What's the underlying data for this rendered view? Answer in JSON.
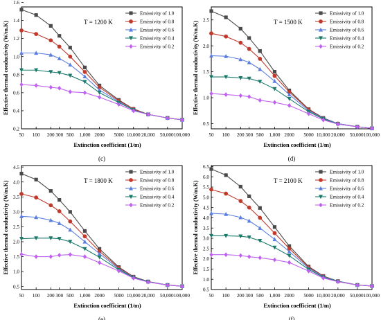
{
  "figure": {
    "legend_title_prefix": "Emissivity of",
    "series_colors": [
      "#4a4a4a",
      "#c0392b",
      "#5b7fe0",
      "#1a7a6a",
      "#c060f0"
    ],
    "series_markers": [
      "square",
      "circle",
      "triangle-up",
      "triangle-down",
      "diamond"
    ]
  },
  "chart_data": [
    {
      "type": "line",
      "panel": "(c)",
      "annotation": "T = 1200 K",
      "xlabel": "Extinction coefficient (1/m)",
      "ylabel": "Effective thermal conductivity (W/m.K)",
      "x": [
        "50",
        "100",
        "200",
        "300",
        "500",
        "1,000",
        "2000",
        "5000",
        "10,000",
        "20,000",
        "50,000",
        "100,000"
      ],
      "x_tick_labels": [
        "50",
        "100",
        "200 300",
        "500",
        "1,000",
        "2000",
        "5000",
        "10,000",
        "20,000",
        "50,000100,000"
      ],
      "yticks": [
        "0.2",
        "0.4",
        "0.6",
        "0.8",
        "1.0",
        "1.2",
        "1.4",
        "1.6"
      ],
      "ylim": [
        0.2,
        1.55
      ],
      "legend_position": "top-right",
      "series": [
        {
          "name": "Emissivity of 1.0",
          "values": [
            1.52,
            1.46,
            1.34,
            1.23,
            1.1,
            0.88,
            0.68,
            0.52,
            0.42,
            0.36,
            0.32,
            0.3
          ]
        },
        {
          "name": "Emissivity of 0.8",
          "values": [
            1.29,
            1.25,
            1.18,
            1.11,
            1.0,
            0.83,
            0.66,
            0.51,
            0.42,
            0.36,
            0.32,
            0.3
          ]
        },
        {
          "name": "Emissivity of 0.6",
          "values": [
            1.04,
            1.04,
            1.02,
            0.98,
            0.91,
            0.78,
            0.63,
            0.5,
            0.41,
            0.36,
            0.32,
            0.3
          ]
        },
        {
          "name": "Emissivity of 0.4",
          "values": [
            0.85,
            0.85,
            0.83,
            0.82,
            0.79,
            0.72,
            0.6,
            0.49,
            0.41,
            0.36,
            0.32,
            0.3
          ]
        },
        {
          "name": "Emissivity of 0.2",
          "values": [
            0.69,
            0.68,
            0.66,
            0.65,
            0.61,
            0.6,
            0.55,
            0.47,
            0.4,
            0.36,
            0.32,
            0.3
          ]
        }
      ]
    },
    {
      "type": "line",
      "panel": "(d)",
      "annotation": "T = 1500 K",
      "xlabel": "Extinction coefficient (1/m)",
      "ylabel": "Effective thermal conductivity (W/m.K)",
      "x": [
        "50",
        "100",
        "200",
        "300",
        "500",
        "1,000",
        "2000",
        "5000",
        "10,000",
        "20,000",
        "50,000",
        "100,000"
      ],
      "x_tick_labels": [
        "50",
        "100",
        "200 300",
        "500",
        "1,000",
        "2000",
        "5000",
        "10,000",
        "20,000",
        "50,000100,000"
      ],
      "yticks": [
        "0.5",
        "1.0",
        "1.5",
        "2.0",
        "2.5"
      ],
      "ylim": [
        0.4,
        2.75
      ],
      "legend_position": "top-right",
      "series": [
        {
          "name": "Emissivity of 1.0",
          "values": [
            2.67,
            2.55,
            2.33,
            2.15,
            1.9,
            1.5,
            1.14,
            0.78,
            0.61,
            0.5,
            0.44,
            0.41
          ]
        },
        {
          "name": "Emissivity of 0.8",
          "values": [
            2.24,
            2.18,
            2.06,
            1.94,
            1.75,
            1.42,
            1.11,
            0.77,
            0.6,
            0.5,
            0.44,
            0.41
          ]
        },
        {
          "name": "Emissivity of 0.6",
          "values": [
            1.81,
            1.8,
            1.74,
            1.68,
            1.55,
            1.32,
            1.06,
            0.75,
            0.6,
            0.5,
            0.44,
            0.41
          ]
        },
        {
          "name": "Emissivity of 0.4",
          "values": [
            1.4,
            1.4,
            1.38,
            1.37,
            1.31,
            1.17,
            0.98,
            0.73,
            0.59,
            0.49,
            0.44,
            0.41
          ]
        },
        {
          "name": "Emissivity of 0.2",
          "values": [
            1.08,
            1.06,
            1.04,
            1.02,
            0.95,
            0.91,
            0.85,
            0.69,
            0.57,
            0.49,
            0.44,
            0.41
          ]
        }
      ]
    },
    {
      "type": "line",
      "panel": "(e)",
      "annotation": "T = 1800 K",
      "xlabel": "Extinction coefficient (1/m)",
      "ylabel": "Effective thermal conductivity (W/m.K)",
      "x": [
        "50",
        "100",
        "200",
        "300",
        "500",
        "1,000",
        "2000",
        "5000",
        "10,000",
        "20,000",
        "50,000",
        "100,000"
      ],
      "x_tick_labels": [
        "50",
        "100",
        "200 300",
        "500",
        "1,000",
        "2000",
        "5000",
        "10,000",
        "20,000",
        "50,000100,000"
      ],
      "yticks": [
        "0.5",
        "1.0",
        "1.5",
        "2.0",
        "2.5",
        "3.0",
        "3.5",
        "4.0",
        "4.5"
      ],
      "ylim": [
        0.4,
        4.55
      ],
      "legend_position": "top-right",
      "series": [
        {
          "name": "Emissivity of 1.0",
          "values": [
            4.28,
            4.08,
            3.7,
            3.4,
            3.0,
            2.36,
            1.76,
            1.15,
            0.83,
            0.67,
            0.55,
            0.51
          ]
        },
        {
          "name": "Emissivity of 0.8",
          "values": [
            3.6,
            3.48,
            3.22,
            3.02,
            2.68,
            2.18,
            1.68,
            1.12,
            0.82,
            0.66,
            0.55,
            0.51
          ]
        },
        {
          "name": "Emissivity of 0.6",
          "values": [
            2.85,
            2.82,
            2.72,
            2.62,
            2.4,
            2.0,
            1.6,
            1.09,
            0.81,
            0.66,
            0.55,
            0.51
          ]
        },
        {
          "name": "Emissivity of 0.4",
          "values": [
            2.1,
            2.12,
            2.12,
            2.1,
            2.0,
            1.76,
            1.48,
            1.06,
            0.8,
            0.66,
            0.55,
            0.51
          ]
        },
        {
          "name": "Emissivity of 0.2",
          "values": [
            1.58,
            1.5,
            1.5,
            1.55,
            1.57,
            1.5,
            1.3,
            1.02,
            0.78,
            0.65,
            0.55,
            0.51
          ]
        }
      ]
    },
    {
      "type": "line",
      "panel": "(f)",
      "annotation": "T = 2100 K",
      "xlabel": "Extinction coefficient (1/m)",
      "ylabel": "Effective thermal conductivity (W/m.K)",
      "x": [
        "50",
        "100",
        "200",
        "300",
        "500",
        "1,000",
        "2000",
        "5000",
        "10,000",
        "20,000",
        "50,000",
        "100,000"
      ],
      "x_tick_labels": [
        "50",
        "100",
        "200 300",
        "500",
        "1,000",
        "2000",
        "5000",
        "10,000",
        "20,000",
        "50,000100,000"
      ],
      "yticks": [
        "0.5",
        "1.0",
        "1.5",
        "2.0",
        "2.5",
        "3.0",
        "3.5",
        "4.0",
        "4.5",
        "5.0",
        "5.5",
        "6.0",
        "6.5"
      ],
      "ylim": [
        0.5,
        6.55
      ],
      "legend_position": "top-right",
      "series": [
        {
          "name": "Emissivity of 1.0",
          "values": [
            6.38,
            6.08,
            5.52,
            5.05,
            4.48,
            3.55,
            2.62,
            1.62,
            1.16,
            0.91,
            0.72,
            0.67
          ]
        },
        {
          "name": "Emissivity of 0.8",
          "values": [
            5.38,
            5.18,
            4.82,
            4.5,
            4.0,
            3.25,
            2.5,
            1.58,
            1.15,
            0.9,
            0.72,
            0.67
          ]
        },
        {
          "name": "Emissivity of 0.6",
          "values": [
            4.22,
            4.18,
            4.02,
            3.85,
            3.5,
            2.95,
            2.35,
            1.54,
            1.13,
            0.9,
            0.72,
            0.67
          ]
        },
        {
          "name": "Emissivity of 0.4",
          "values": [
            3.12,
            3.12,
            3.1,
            3.05,
            2.88,
            2.55,
            2.15,
            1.48,
            1.1,
            0.89,
            0.72,
            0.67
          ]
        },
        {
          "name": "Emissivity of 0.2",
          "values": [
            2.2,
            2.2,
            2.16,
            2.1,
            2.05,
            1.95,
            1.82,
            1.4,
            1.06,
            0.88,
            0.72,
            0.67
          ]
        }
      ]
    }
  ]
}
